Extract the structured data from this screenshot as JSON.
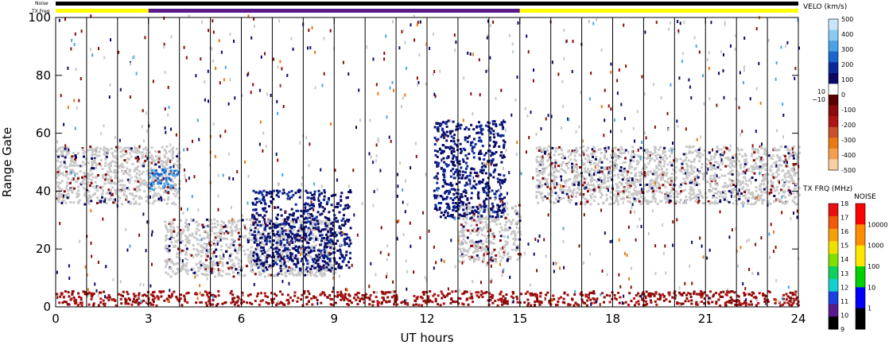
{
  "chart_data": {
    "type": "heatmap",
    "xlabel": "UT hours",
    "ylabel": "Range Gate",
    "xlim": [
      0,
      24
    ],
    "ylim": [
      0,
      100
    ],
    "xticks": [
      0,
      3,
      6,
      9,
      12,
      15,
      18,
      21,
      24
    ],
    "yticks": [
      0,
      20,
      40,
      60,
      80,
      100
    ],
    "scan_boundaries_hours": [
      1,
      2,
      3,
      4,
      5,
      6,
      7,
      8,
      9,
      10,
      11,
      12,
      13,
      14,
      15,
      16,
      17,
      18,
      19,
      20,
      21,
      22,
      23,
      24
    ],
    "top_bars": {
      "noise_label": "Noise",
      "txfreq_label": "TX Freq",
      "noise_color": "#000000",
      "txfreq_segments": [
        {
          "start": 0,
          "end": 3,
          "color": "#ffff00"
        },
        {
          "start": 3,
          "end": 15,
          "color": "#5a1a8c"
        },
        {
          "start": 15,
          "end": 24,
          "color": "#ffff00"
        }
      ]
    },
    "velocity_colorbar": {
      "title": "VELO (km/s)",
      "ticks": [
        500,
        400,
        300,
        200,
        100,
        0,
        -100,
        -200,
        -300,
        -400,
        -500
      ],
      "inner_labels": [
        "10",
        "−10"
      ],
      "colors": [
        "#c8e8ff",
        "#8ccaf2",
        "#4aa3e6",
        "#1a66cc",
        "#0a2a99",
        "#0a0a66",
        "#ffffff",
        "#5a0000",
        "#8c0a0a",
        "#b01414",
        "#c8502a",
        "#e87a14",
        "#f2a050",
        "#f8d0a0"
      ]
    },
    "txfreq_colorbar": {
      "title": "TX FRQ (MHz)",
      "ticks": [
        18,
        17,
        16,
        15,
        14,
        13,
        12,
        11,
        10,
        9
      ],
      "colors": [
        "#e81010",
        "#f05a0a",
        "#f5a00a",
        "#f0e000",
        "#80e000",
        "#10d060",
        "#10d0d0",
        "#1a40e0",
        "#5a1a8c",
        "#000000"
      ]
    },
    "noise_colorbar": {
      "title": "NOISE",
      "ticks": [
        "10000",
        "1000",
        "100",
        "10",
        "1"
      ],
      "colors": [
        "#ff0000",
        "#ff8c00",
        "#ffe600",
        "#00d000",
        "#0000ff",
        "#000000"
      ]
    },
    "ground_scatter_color": "#c8c8c8",
    "features": [
      {
        "kind": "ground-scatter",
        "x_range": [
          0,
          4
        ],
        "y_range": [
          35,
          55
        ]
      },
      {
        "kind": "ground-scatter",
        "x_range": [
          3.5,
          9
        ],
        "y_range": [
          10,
          30
        ]
      },
      {
        "kind": "ground-scatter",
        "x_range": [
          13,
          15
        ],
        "y_range": [
          15,
          35
        ]
      },
      {
        "kind": "ground-scatter",
        "x_range": [
          15.5,
          24
        ],
        "y_range": [
          35,
          55
        ]
      },
      {
        "kind": "away-velocity",
        "x_range": [
          3,
          4
        ],
        "y_range": [
          40,
          48
        ],
        "value_kms": 300
      },
      {
        "kind": "toward-velocity",
        "x_range": [
          0,
          24
        ],
        "y_range": [
          0,
          5
        ],
        "value_kms": -150
      },
      {
        "kind": "away-velocity",
        "x_range": [
          6.3,
          9.5
        ],
        "y_range": [
          12,
          40
        ],
        "value_kms": 80
      },
      {
        "kind": "away-velocity",
        "x_range": [
          12.2,
          14.5
        ],
        "y_range": [
          30,
          64
        ],
        "value_kms": 90
      }
    ]
  }
}
